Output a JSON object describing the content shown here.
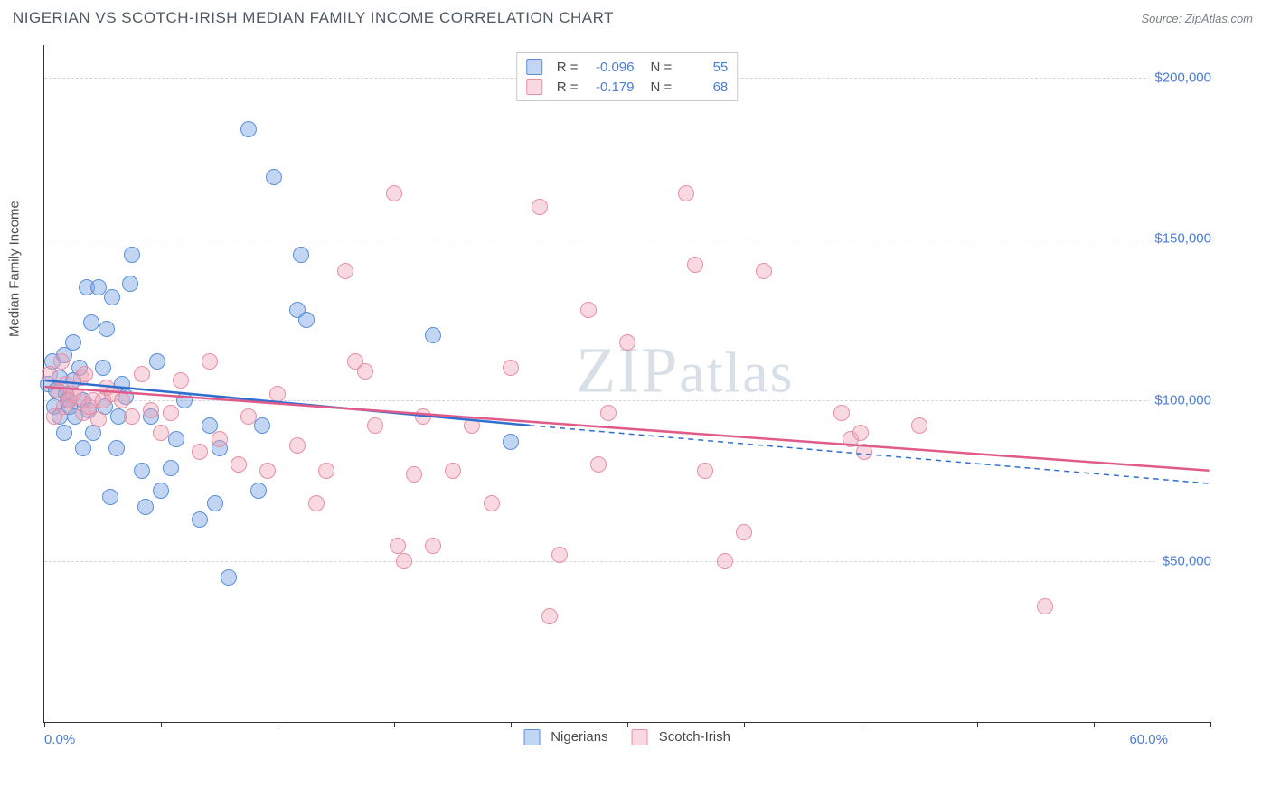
{
  "header": {
    "title": "NIGERIAN VS SCOTCH-IRISH MEDIAN FAMILY INCOME CORRELATION CHART",
    "source": "Source: ZipAtlas.com"
  },
  "watermark": {
    "zip": "ZIP",
    "atlas": "atlas"
  },
  "chart": {
    "type": "scatter",
    "background_color": "#ffffff",
    "grid_color": "#d6d6d6",
    "axis_color": "#333333",
    "tick_label_color": "#4a7dd6",
    "axis_title_color": "#4d4d4d",
    "y_axis_title": "Median Family Income",
    "y_axis_title_fontsize": 15,
    "tick_label_fontsize": 15,
    "xlim": [
      0,
      60
    ],
    "ylim": [
      0,
      210000
    ],
    "x_min_label": "0.0%",
    "x_max_label": "60.0%",
    "x_tick_positions": [
      0,
      6,
      12,
      18,
      24,
      30,
      36,
      42,
      48,
      54,
      60
    ],
    "y_ticks": [
      {
        "v": 50000,
        "label": "$50,000"
      },
      {
        "v": 100000,
        "label": "$100,000"
      },
      {
        "v": 150000,
        "label": "$150,000"
      },
      {
        "v": 200000,
        "label": "$200,000"
      }
    ],
    "marker_radius": 9,
    "series": [
      {
        "key": "nigerians",
        "label": "Nigerians",
        "fill_color": "rgba(120,165,230,0.45)",
        "stroke_color": "#5a8fd8",
        "trend_color": "#2f6fd0",
        "trend_width": 2.5,
        "r_value": "-0.096",
        "n_value": "55",
        "trend": {
          "x1": 0,
          "y1": 106000,
          "x2": 25,
          "y2": 92000,
          "extend_to": 60,
          "extend_y": 74000
        },
        "points": [
          [
            0.2,
            105000
          ],
          [
            0.4,
            112000
          ],
          [
            0.5,
            98000
          ],
          [
            0.6,
            103000
          ],
          [
            0.8,
            95000
          ],
          [
            0.8,
            107000
          ],
          [
            1.0,
            90000
          ],
          [
            1.0,
            114000
          ],
          [
            1.1,
            102000
          ],
          [
            1.2,
            100000
          ],
          [
            1.3,
            98000
          ],
          [
            1.5,
            106000
          ],
          [
            1.5,
            118000
          ],
          [
            1.6,
            95000
          ],
          [
            1.8,
            110000
          ],
          [
            2.0,
            85000
          ],
          [
            2.0,
            100000
          ],
          [
            2.2,
            135000
          ],
          [
            2.3,
            97000
          ],
          [
            2.4,
            124000
          ],
          [
            2.5,
            90000
          ],
          [
            2.8,
            135000
          ],
          [
            3.0,
            110000
          ],
          [
            3.1,
            98000
          ],
          [
            3.2,
            122000
          ],
          [
            3.4,
            70000
          ],
          [
            3.5,
            132000
          ],
          [
            3.7,
            85000
          ],
          [
            3.8,
            95000
          ],
          [
            4.0,
            105000
          ],
          [
            4.2,
            101000
          ],
          [
            4.4,
            136000
          ],
          [
            4.5,
            145000
          ],
          [
            5.0,
            78000
          ],
          [
            5.2,
            67000
          ],
          [
            5.5,
            95000
          ],
          [
            5.8,
            112000
          ],
          [
            6.0,
            72000
          ],
          [
            6.5,
            79000
          ],
          [
            6.8,
            88000
          ],
          [
            7.2,
            100000
          ],
          [
            8.0,
            63000
          ],
          [
            8.5,
            92000
          ],
          [
            9.0,
            85000
          ],
          [
            8.8,
            68000
          ],
          [
            9.5,
            45000
          ],
          [
            10.5,
            184000
          ],
          [
            11.0,
            72000
          ],
          [
            11.2,
            92000
          ],
          [
            11.8,
            169000
          ],
          [
            13.0,
            128000
          ],
          [
            13.2,
            145000
          ],
          [
            13.5,
            125000
          ],
          [
            20.0,
            120000
          ],
          [
            24.0,
            87000
          ]
        ]
      },
      {
        "key": "scotch_irish",
        "label": "Scotch-Irish",
        "fill_color": "rgba(240,160,180,0.40)",
        "stroke_color": "#e78fa4",
        "trend_color": "#e05a8a",
        "trend_width": 2.5,
        "r_value": "-0.179",
        "n_value": "68",
        "trend": {
          "x1": 0,
          "y1": 104000,
          "x2": 60,
          "y2": 78000
        },
        "points": [
          [
            0.3,
            108000
          ],
          [
            0.5,
            95000
          ],
          [
            0.7,
            103000
          ],
          [
            0.9,
            112000
          ],
          [
            1.0,
            98000
          ],
          [
            1.1,
            105000
          ],
          [
            1.3,
            100000
          ],
          [
            1.5,
            102000
          ],
          [
            1.7,
            101000
          ],
          [
            1.9,
            107000
          ],
          [
            2.0,
            96000
          ],
          [
            2.1,
            108000
          ],
          [
            2.3,
            98000
          ],
          [
            2.5,
            100000
          ],
          [
            2.8,
            94000
          ],
          [
            3.0,
            100000
          ],
          [
            3.2,
            104000
          ],
          [
            3.5,
            102000
          ],
          [
            4.0,
            100000
          ],
          [
            4.5,
            95000
          ],
          [
            5.0,
            108000
          ],
          [
            5.5,
            97000
          ],
          [
            6.0,
            90000
          ],
          [
            6.5,
            96000
          ],
          [
            7.0,
            106000
          ],
          [
            8.0,
            84000
          ],
          [
            8.5,
            112000
          ],
          [
            9.0,
            88000
          ],
          [
            10.0,
            80000
          ],
          [
            10.5,
            95000
          ],
          [
            11.5,
            78000
          ],
          [
            12.0,
            102000
          ],
          [
            13.0,
            86000
          ],
          [
            14.0,
            68000
          ],
          [
            14.5,
            78000
          ],
          [
            15.5,
            140000
          ],
          [
            16.0,
            112000
          ],
          [
            16.5,
            109000
          ],
          [
            17.0,
            92000
          ],
          [
            18.0,
            164000
          ],
          [
            18.2,
            55000
          ],
          [
            18.5,
            50000
          ],
          [
            19.0,
            77000
          ],
          [
            19.5,
            95000
          ],
          [
            20.0,
            55000
          ],
          [
            21.0,
            78000
          ],
          [
            22.0,
            92000
          ],
          [
            23.0,
            68000
          ],
          [
            24.0,
            110000
          ],
          [
            25.5,
            160000
          ],
          [
            26.0,
            33000
          ],
          [
            26.5,
            52000
          ],
          [
            28.0,
            128000
          ],
          [
            28.5,
            80000
          ],
          [
            29.0,
            96000
          ],
          [
            30.0,
            118000
          ],
          [
            33.0,
            164000
          ],
          [
            33.5,
            142000
          ],
          [
            34.0,
            78000
          ],
          [
            35.0,
            50000
          ],
          [
            36.0,
            59000
          ],
          [
            37.0,
            140000
          ],
          [
            41.0,
            96000
          ],
          [
            41.5,
            88000
          ],
          [
            42.0,
            90000
          ],
          [
            42.2,
            84000
          ],
          [
            51.5,
            36000
          ],
          [
            45.0,
            92000
          ]
        ]
      }
    ],
    "top_legend": {
      "r_label": "R =",
      "n_label": "N ="
    },
    "bottom_legend_fontsize": 15
  }
}
